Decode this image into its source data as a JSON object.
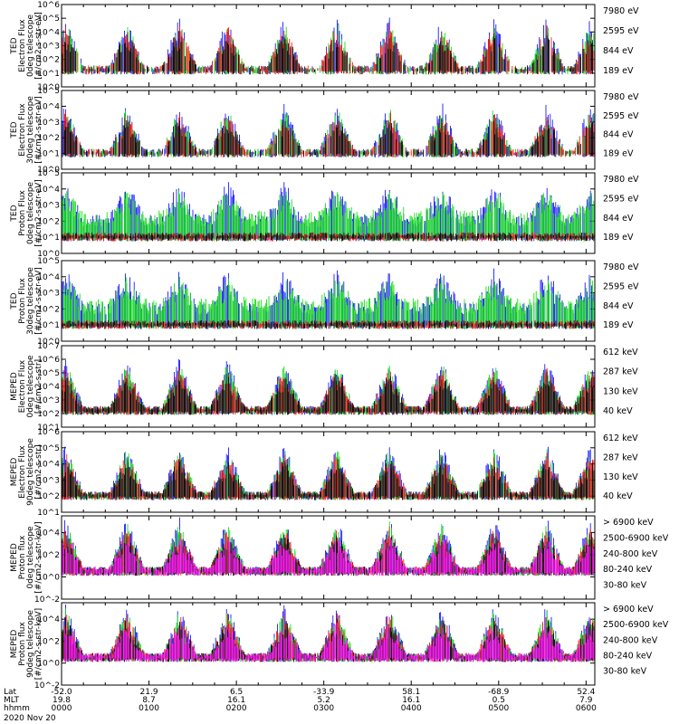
{
  "chart_data": [
    {
      "type": "line",
      "panel_label": [
        "TED",
        "Electron Flux",
        "0deg telescope",
        "[#/cm2-s-str-eV]"
      ],
      "y_tick_labels": [
        "10^0",
        "10^1",
        "10^2",
        "10^3",
        "10^4",
        "10^5",
        "10^6"
      ],
      "ylim_exp": [
        0,
        6
      ],
      "series": [
        {
          "name": "7980 eV",
          "color": "#000000"
        },
        {
          "name": "2595 eV",
          "color": "#ff0000"
        },
        {
          "name": "844 eV",
          "color": "#00dd00"
        },
        {
          "name": "189 eV",
          "color": "#0000ff"
        }
      ]
    },
    {
      "type": "line",
      "panel_label": [
        "TED",
        "Electron Flux",
        "30deg telescope",
        "[#/cm2-s-str-eV]"
      ],
      "y_tick_labels": [
        "10^0",
        "10^1",
        "10^2",
        "10^3",
        "10^4",
        "10^5"
      ],
      "ylim_exp": [
        0,
        5
      ],
      "series": [
        {
          "name": "7980 eV",
          "color": "#000000"
        },
        {
          "name": "2595 eV",
          "color": "#ff0000"
        },
        {
          "name": "844 eV",
          "color": "#00dd00"
        },
        {
          "name": "189 eV",
          "color": "#0000ff"
        }
      ]
    },
    {
      "type": "line",
      "panel_label": [
        "TED",
        "Proton Flux",
        "0deg telescope",
        "[#/cm2-s-str-eV]"
      ],
      "y_tick_labels": [
        "10^0",
        "10^1",
        "10^2",
        "10^3",
        "10^4",
        "10^5"
      ],
      "ylim_exp": [
        0,
        5
      ],
      "series": [
        {
          "name": "7980 eV",
          "color": "#000000"
        },
        {
          "name": "2595 eV",
          "color": "#ff0000"
        },
        {
          "name": "844 eV",
          "color": "#00dd00"
        },
        {
          "name": "189 eV",
          "color": "#0000ff"
        }
      ]
    },
    {
      "type": "line",
      "panel_label": [
        "TED",
        "Proton Flux",
        "30deg telescope",
        "[#/cm2-s-str-eV]"
      ],
      "y_tick_labels": [
        "10^0",
        "10^1",
        "10^2",
        "10^3",
        "10^4",
        "10^5"
      ],
      "ylim_exp": [
        0,
        5
      ],
      "series": [
        {
          "name": "7980 eV",
          "color": "#000000"
        },
        {
          "name": "2595 eV",
          "color": "#ff0000"
        },
        {
          "name": "844 eV",
          "color": "#00dd00"
        },
        {
          "name": "189 eV",
          "color": "#0000ff"
        }
      ]
    },
    {
      "type": "line",
      "panel_label": [
        "MEPED",
        "Electron Flux",
        "0deg telescope",
        "[#/cm2-s-str]"
      ],
      "y_tick_labels": [
        "10^1",
        "10^2",
        "10^3",
        "10^4",
        "10^5",
        "10^6",
        "10^7"
      ],
      "ylim_exp": [
        1,
        7
      ],
      "series": [
        {
          "name": "612 keV",
          "color": "#000000"
        },
        {
          "name": "287 keV",
          "color": "#ff0000"
        },
        {
          "name": "130 keV",
          "color": "#00dd00"
        },
        {
          "name": "40 keV",
          "color": "#0000ff"
        }
      ]
    },
    {
      "type": "line",
      "panel_label": [
        "MEPED",
        "Electron Flux",
        "90deg telescope",
        "[#/cm2-s-str]"
      ],
      "y_tick_labels": [
        "10^1",
        "10^2",
        "10^3",
        "10^4",
        "10^5",
        "10^6"
      ],
      "ylim_exp": [
        1,
        6
      ],
      "series": [
        {
          "name": "612 keV",
          "color": "#000000"
        },
        {
          "name": "287 keV",
          "color": "#ff0000"
        },
        {
          "name": "130 keV",
          "color": "#00dd00"
        },
        {
          "name": "40 keV",
          "color": "#0000ff"
        }
      ]
    },
    {
      "type": "line",
      "panel_label": [
        "MEPED",
        "Proton flux",
        "0deg telescope",
        "[#/cm2-s-str-keV]"
      ],
      "y_tick_labels": [
        "10^-2",
        "10^0",
        "10^2",
        "10^4"
      ],
      "ylim_exp": [
        -2,
        5.5
      ],
      "series": [
        {
          "name": "> 6900 keV",
          "color": "#ff00ff"
        },
        {
          "name": "2500-6900 keV",
          "color": "#000000"
        },
        {
          "name": "240-800 keV",
          "color": "#ff0000"
        },
        {
          "name": "80-240 keV",
          "color": "#00dd00"
        },
        {
          "name": "30-80 keV",
          "color": "#0000ff"
        }
      ]
    },
    {
      "type": "line",
      "panel_label": [
        "MEPED",
        "Proton flux",
        "90deg telescope",
        "[#/cm2-s-str-keV]"
      ],
      "y_tick_labels": [
        "10^-2",
        "10^0",
        "10^2",
        "10^4"
      ],
      "ylim_exp": [
        -2,
        5.5
      ],
      "series": [
        {
          "name": "> 6900 keV",
          "color": "#ff00ff"
        },
        {
          "name": "2500-6900 keV",
          "color": "#000000"
        },
        {
          "name": "240-800 keV",
          "color": "#ff0000"
        },
        {
          "name": "80-240 keV",
          "color": "#00dd00"
        },
        {
          "name": "30-80 keV",
          "color": "#0000ff"
        }
      ]
    }
  ],
  "x_axis": {
    "row_labels": [
      "Lat",
      "MLT",
      "hhmm"
    ],
    "date": "2020 Nov 20",
    "ticks": [
      {
        "lat": "-52.0",
        "mlt": "19.8",
        "hhmm": "0000"
      },
      {
        "lat": "21.9",
        "mlt": "8.7",
        "hhmm": "0100"
      },
      {
        "lat": "6.5",
        "mlt": "16.1",
        "hhmm": "0200"
      },
      {
        "lat": "-33.9",
        "mlt": "5.2",
        "hhmm": "0300"
      },
      {
        "lat": "58.1",
        "mlt": "16.1",
        "hhmm": "0400"
      },
      {
        "lat": "-68.9",
        "mlt": "0.5",
        "hhmm": "0500"
      },
      {
        "lat": "52.4",
        "mlt": "7.9",
        "hhmm": "0600"
      }
    ]
  }
}
